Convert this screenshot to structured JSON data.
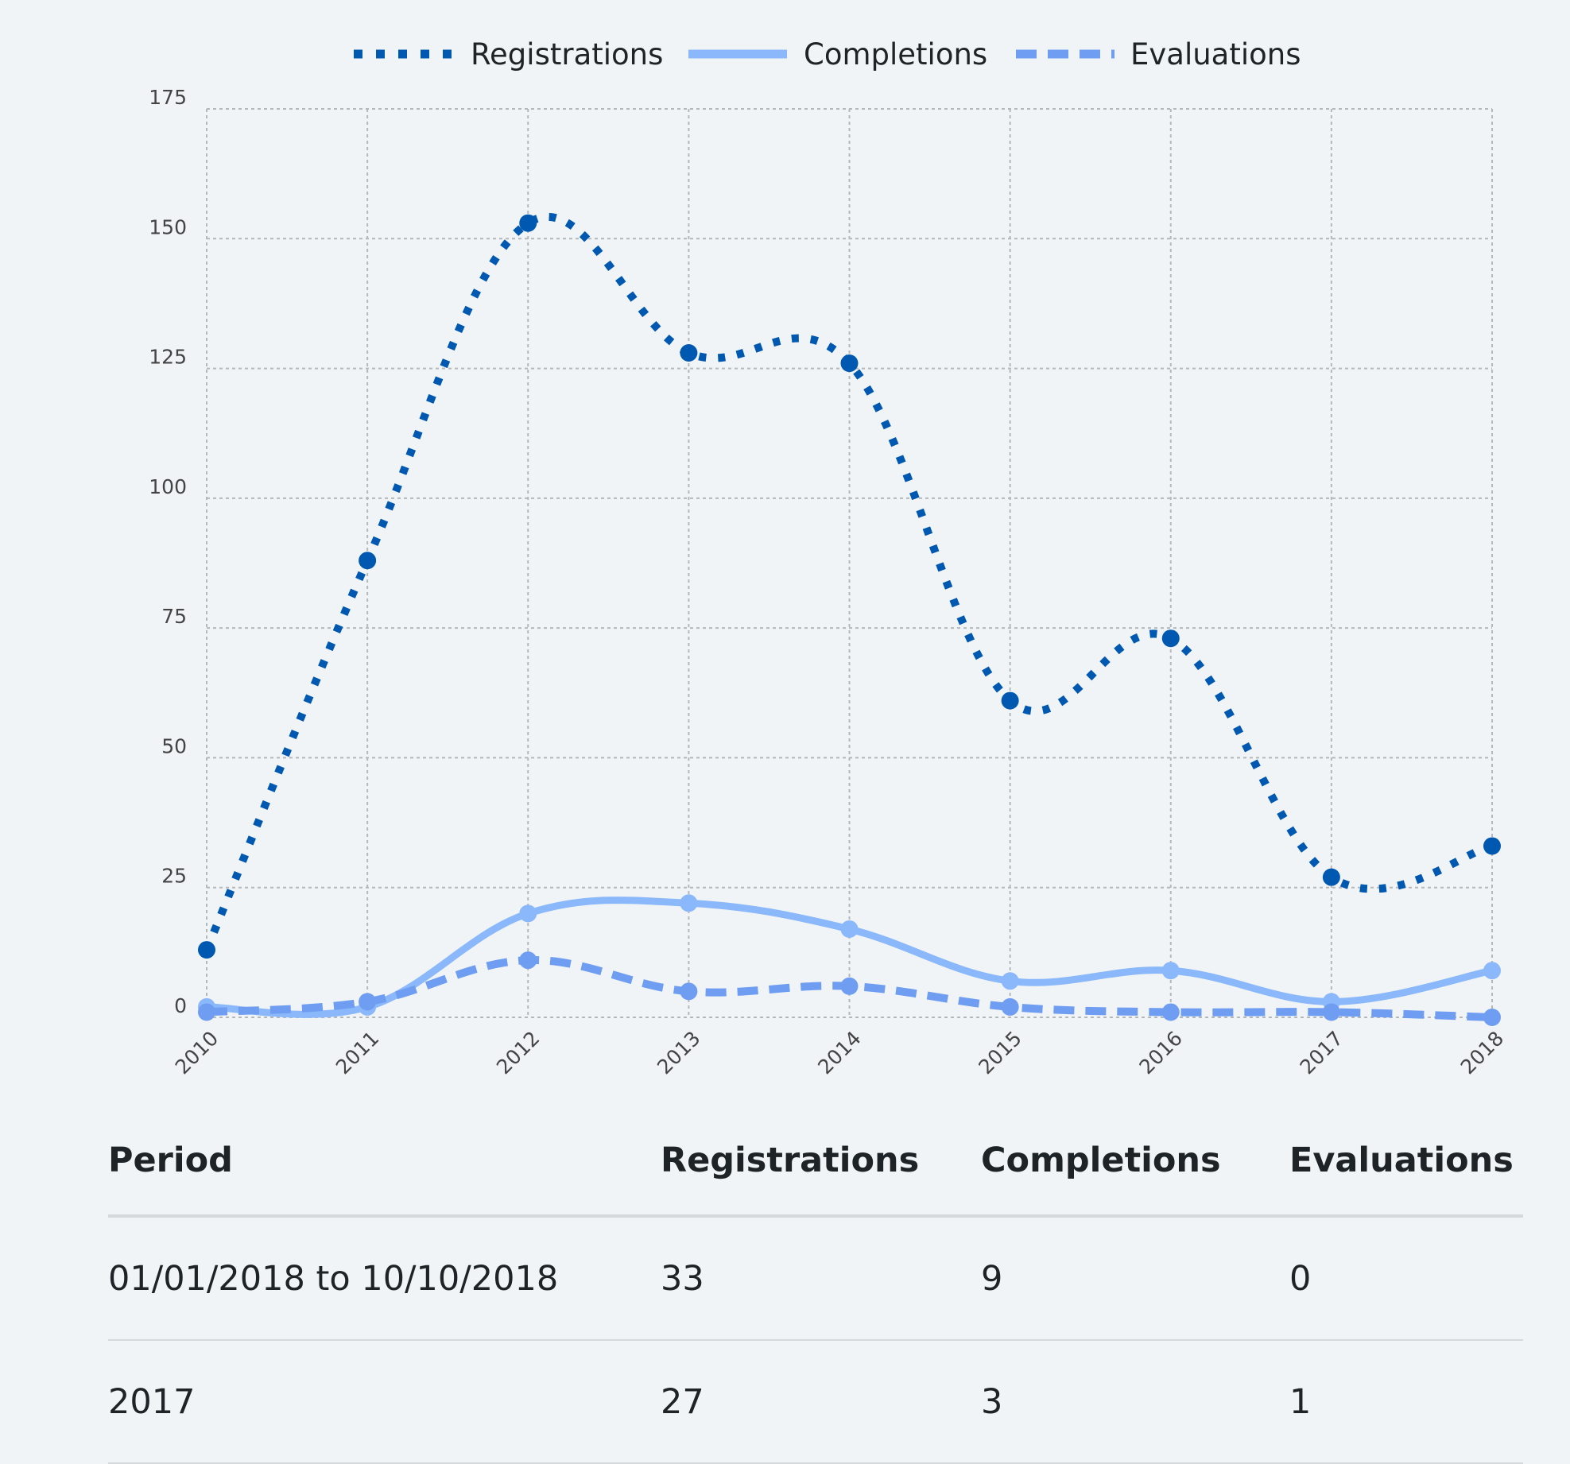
{
  "chart_data": {
    "type": "line",
    "categories": [
      "2010",
      "2011",
      "2012",
      "2013",
      "2014",
      "2015",
      "2016",
      "2017",
      "2018"
    ],
    "series": [
      {
        "name": "Registrations",
        "values": [
          13,
          88,
          153,
          128,
          126,
          61,
          73,
          27,
          33
        ],
        "color": "#0058b0",
        "dash": "dotted"
      },
      {
        "name": "Completions",
        "values": [
          2,
          2,
          20,
          22,
          17,
          7,
          9,
          3,
          9
        ],
        "color": "#8ab8fa",
        "dash": "solid"
      },
      {
        "name": "Evaluations",
        "values": [
          1,
          3,
          11,
          5,
          6,
          2,
          1,
          1,
          0
        ],
        "color": "#6e9df1",
        "dash": "dashed"
      }
    ],
    "yticks": [
      "0",
      "25",
      "50",
      "75",
      "100",
      "125",
      "150",
      "175"
    ],
    "ylim": [
      0,
      175
    ],
    "grid": true,
    "legend_position": "top-center"
  },
  "table": {
    "headers": [
      "Period",
      "Registrations",
      "Completions",
      "Evaluations"
    ],
    "rows": [
      [
        "01/01/2018 to 10/10/2018",
        "33",
        "9",
        "0"
      ],
      [
        "2017",
        "27",
        "3",
        "1"
      ]
    ]
  }
}
